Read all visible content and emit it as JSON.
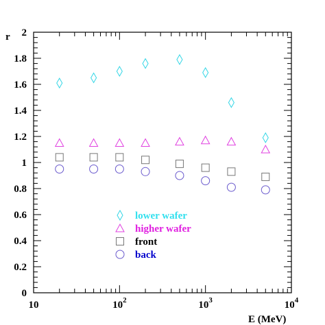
{
  "chart_data": {
    "type": "scatter",
    "title": "",
    "xlabel": "E (MeV)",
    "ylabel": "r",
    "xscale": "log",
    "xlim": [
      10,
      10000
    ],
    "ylim": [
      0,
      2
    ],
    "grid": false,
    "legend_placement": "lower-center",
    "x_ticks": [
      {
        "value": 10,
        "base": "10",
        "exp": ""
      },
      {
        "value": 100,
        "base": "10",
        "exp": "2"
      },
      {
        "value": 1000,
        "base": "10",
        "exp": "3"
      },
      {
        "value": 10000,
        "base": "10",
        "exp": "4"
      }
    ],
    "y_ticks": [
      {
        "value": 0,
        "label": "0"
      },
      {
        "value": 0.2,
        "label": "0.2"
      },
      {
        "value": 0.4,
        "label": "0.4"
      },
      {
        "value": 0.6,
        "label": "0.6"
      },
      {
        "value": 0.8,
        "label": "0.8"
      },
      {
        "value": 1.0,
        "label": "1"
      },
      {
        "value": 1.2,
        "label": "1.2"
      },
      {
        "value": 1.4,
        "label": "1.4"
      },
      {
        "value": 1.6,
        "label": "1.6"
      },
      {
        "value": 1.8,
        "label": "1.8"
      },
      {
        "value": 2.0,
        "label": "2"
      }
    ],
    "series": [
      {
        "name": "lower wafer",
        "marker": "diamond",
        "color": "#33d6e6",
        "label_color": "#33e0ee",
        "x": [
          20,
          50,
          100,
          200,
          500,
          1000,
          2000,
          5000
        ],
        "y": [
          1.61,
          1.65,
          1.7,
          1.76,
          1.79,
          1.69,
          1.46,
          1.19
        ]
      },
      {
        "name": "higher wafer",
        "marker": "triangle",
        "color": "#e040e0",
        "label_color": "#e020e0",
        "x": [
          20,
          50,
          100,
          200,
          500,
          1000,
          2000,
          5000
        ],
        "y": [
          1.15,
          1.15,
          1.15,
          1.15,
          1.16,
          1.17,
          1.16,
          1.1
        ]
      },
      {
        "name": "front",
        "marker": "square",
        "color": "#777777",
        "label_color": "#000000",
        "x": [
          20,
          50,
          100,
          200,
          500,
          1000,
          2000,
          5000
        ],
        "y": [
          1.04,
          1.04,
          1.04,
          1.02,
          0.99,
          0.96,
          0.93,
          0.89
        ]
      },
      {
        "name": "back",
        "marker": "circle",
        "color": "#6a5acd",
        "label_color": "#0000cc",
        "x": [
          20,
          50,
          100,
          200,
          500,
          1000,
          2000,
          5000
        ],
        "y": [
          0.95,
          0.95,
          0.95,
          0.93,
          0.9,
          0.86,
          0.81,
          0.79
        ]
      }
    ]
  }
}
